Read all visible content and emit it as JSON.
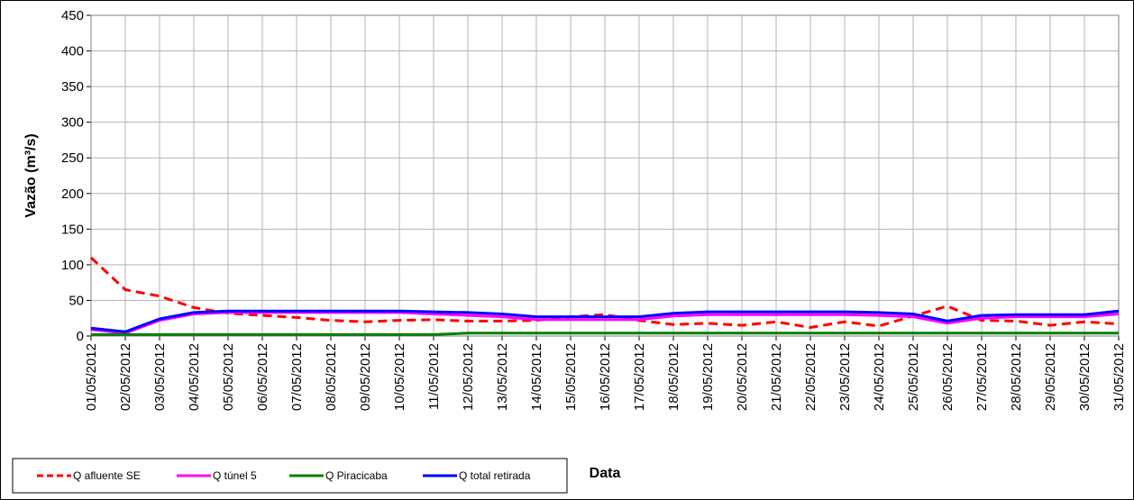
{
  "chart_data": {
    "type": "line",
    "xlabel": "Data",
    "ylabel": "Vazão (m³/s)",
    "ylim": [
      0,
      450
    ],
    "yticks": [
      0,
      50,
      100,
      150,
      200,
      250,
      300,
      350,
      400,
      450
    ],
    "grid": true,
    "legend_position": "bottom-left",
    "categories": [
      "01/05/2012",
      "02/05/2012",
      "03/05/2012",
      "04/05/2012",
      "05/05/2012",
      "06/05/2012",
      "07/05/2012",
      "08/05/2012",
      "09/05/2012",
      "10/05/2012",
      "11/05/2012",
      "12/05/2012",
      "13/05/2012",
      "14/05/2012",
      "15/05/2012",
      "16/05/2012",
      "17/05/2012",
      "18/05/2012",
      "19/05/2012",
      "20/05/2012",
      "21/05/2012",
      "22/05/2012",
      "23/05/2012",
      "24/05/2012",
      "25/05/2012",
      "26/05/2012",
      "27/05/2012",
      "28/05/2012",
      "29/05/2012",
      "30/05/2012",
      "31/05/2012"
    ],
    "series": [
      {
        "name": "Q afluente SE",
        "color": "#ff0000",
        "dash": "dashed",
        "values": [
          110,
          65,
          56,
          40,
          32,
          29,
          26,
          22,
          20,
          22,
          23,
          21,
          21,
          22,
          27,
          30,
          22,
          16,
          18,
          15,
          20,
          12,
          20,
          14,
          28,
          42,
          22,
          21,
          15,
          20,
          17
        ]
      },
      {
        "name": "Q túnel 5",
        "color": "#ff00ff",
        "dash": "solid",
        "values": [
          9,
          4,
          22,
          31,
          33,
          33,
          33,
          33,
          33,
          33,
          31,
          29,
          27,
          23,
          23,
          23,
          23,
          28,
          30,
          30,
          30,
          30,
          30,
          29,
          27,
          18,
          25,
          27,
          27,
          27,
          31
        ]
      },
      {
        "name": "Q Piracicaba",
        "color": "#008000",
        "dash": "solid",
        "values": [
          2,
          2,
          2,
          2,
          2,
          2,
          2,
          2,
          2,
          2,
          2,
          4,
          4,
          4,
          4,
          4,
          4,
          4,
          4,
          4,
          4,
          4,
          4,
          4,
          4,
          4,
          4,
          4,
          4,
          4,
          4
        ]
      },
      {
        "name": "Q total retirada",
        "color": "#0000ff",
        "dash": "solid",
        "values": [
          11,
          6,
          24,
          33,
          35,
          35,
          35,
          35,
          35,
          35,
          34,
          33,
          31,
          27,
          27,
          27,
          27,
          32,
          34,
          34,
          34,
          34,
          34,
          33,
          31,
          21,
          29,
          30,
          30,
          30,
          35
        ]
      }
    ]
  }
}
